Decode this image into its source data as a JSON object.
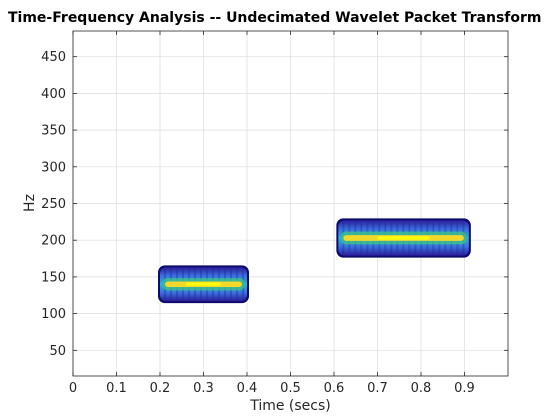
{
  "chart_data": {
    "type": "heatmap",
    "title": "Time-Frequency Analysis -- Undecimated Wavelet Packet Transform",
    "xlabel": "Time (secs)",
    "ylabel": "Hz",
    "xlim": [
      0,
      1
    ],
    "ylim": [
      15,
      485
    ],
    "xticks": [
      0,
      0.1,
      0.2,
      0.3,
      0.4,
      0.5,
      0.6,
      0.7,
      0.8,
      0.9
    ],
    "xtick_labels": [
      "0",
      "0.1",
      "0.2",
      "0.3",
      "0.4",
      "0.5",
      "0.6",
      "0.7",
      "0.8",
      "0.9"
    ],
    "yticks": [
      50,
      100,
      150,
      200,
      250,
      300,
      350,
      400,
      450
    ],
    "ytick_labels": [
      "50",
      "100",
      "150",
      "200",
      "250",
      "300",
      "350",
      "400",
      "450"
    ],
    "grid": true,
    "colormap": "parula",
    "colors": {
      "low": "#3e26a8",
      "mid": "#1fa9d3",
      "high": "#f9fb0e",
      "edge": "#0c0c6e"
    },
    "components": [
      {
        "name": "component-1",
        "t_start": 0.2,
        "t_end": 0.4,
        "freq_center": 140,
        "freq_half_width": 23
      },
      {
        "name": "component-2",
        "t_start": 0.61,
        "t_end": 0.91,
        "freq_center": 203,
        "freq_half_width": 24
      }
    ]
  }
}
